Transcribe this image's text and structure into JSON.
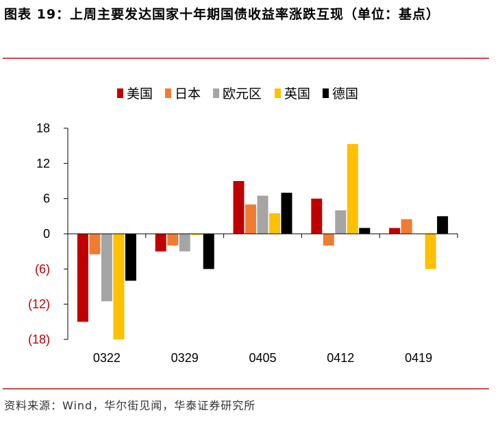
{
  "title": "图表 19：上周主要发达国家十年期国债收益率涨跌互现（单位：基点）",
  "source": "资料来源：Wind，华尔街见闻，华泰证券研究所",
  "chart_data": {
    "type": "bar",
    "categories": [
      "0322",
      "0329",
      "0405",
      "0412",
      "0419"
    ],
    "series": [
      {
        "name": "美国",
        "color": "#c00000",
        "values": [
          -15,
          -3,
          9,
          6,
          1
        ]
      },
      {
        "name": "日本",
        "color": "#f07c33",
        "values": [
          -3.5,
          -2,
          5,
          -2,
          2.5
        ]
      },
      {
        "name": "欧元区",
        "color": "#a5a5a5",
        "values": [
          -11.5,
          -3,
          6.5,
          4,
          0
        ]
      },
      {
        "name": "英国",
        "color": "#ffc000",
        "values": [
          -18,
          -0.2,
          3.5,
          15.3,
          -6
        ]
      },
      {
        "name": "德国",
        "color": "#000000",
        "values": [
          -8,
          -6,
          7,
          1,
          3
        ]
      }
    ],
    "ylim": [
      -18,
      18
    ],
    "yticks": [
      18,
      12,
      6,
      0,
      -6,
      -12,
      -18
    ],
    "ytick_labels": [
      "18",
      "12",
      "6",
      "0",
      "(6)",
      "(12)",
      "(18)"
    ],
    "negative_tick_color": "#c00000",
    "legend_position": "top-center",
    "grid": false
  }
}
